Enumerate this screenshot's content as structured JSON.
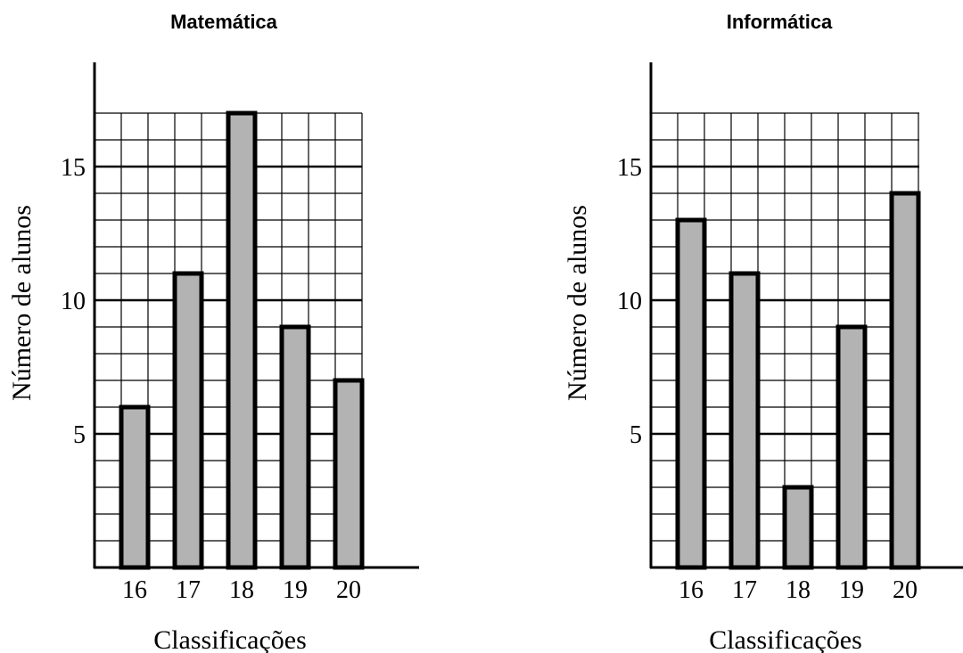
{
  "chart_data": [
    {
      "type": "bar",
      "title": "Matemática",
      "xlabel": "Classificações",
      "ylabel": "Número de alunos",
      "categories": [
        "16",
        "17",
        "18",
        "19",
        "20"
      ],
      "values": [
        6,
        11,
        17,
        9,
        7
      ],
      "ylim": [
        0,
        17
      ],
      "yticks": [
        "5",
        "10",
        "15"
      ],
      "grid": true,
      "bar_color": "#b3b3b3"
    },
    {
      "type": "bar",
      "title": "Informática",
      "xlabel": "Classificações",
      "ylabel": "Número de alunos",
      "categories": [
        "16",
        "17",
        "18",
        "19",
        "20"
      ],
      "values": [
        13,
        11,
        3,
        9,
        14
      ],
      "ylim": [
        0,
        17
      ],
      "yticks": [
        "5",
        "10",
        "15"
      ],
      "grid": true,
      "bar_color": "#b3b3b3"
    }
  ]
}
